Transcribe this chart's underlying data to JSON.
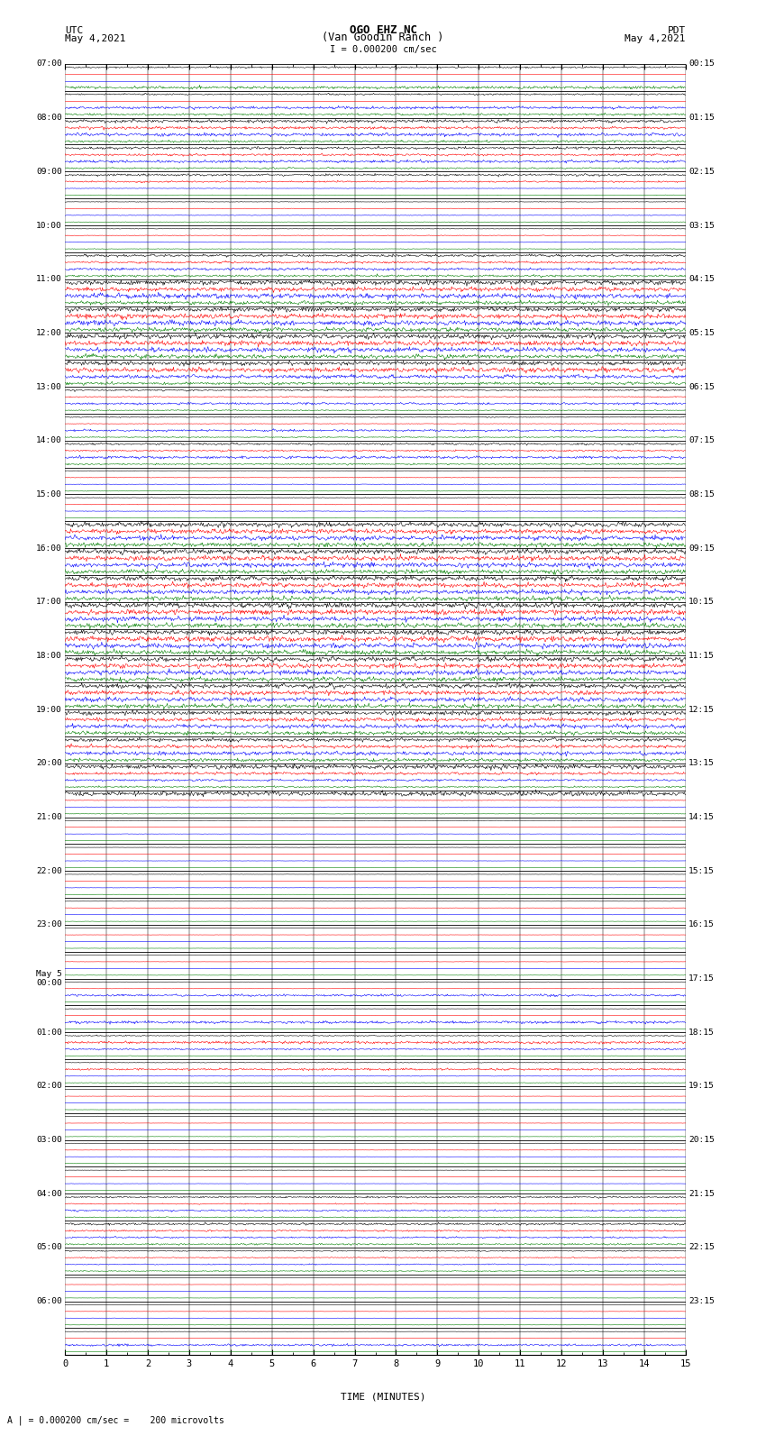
{
  "title_line1": "OGO EHZ NC",
  "title_line2": "(Van Goodin Ranch )",
  "scale_label": "I = 0.000200 cm/sec",
  "bottom_label": "A | = 0.000200 cm/sec =    200 microvolts",
  "utc_label": "UTC\nMay 4,2021",
  "pdt_label": "PDT\nMay 4,2021",
  "xlabel": "TIME (MINUTES)",
  "figure_width": 8.5,
  "figure_height": 16.13,
  "dpi": 100,
  "background_color": "#ffffff",
  "left_time_labels": [
    "07:00",
    "",
    "08:00",
    "",
    "09:00",
    "",
    "10:00",
    "",
    "11:00",
    "",
    "12:00",
    "",
    "13:00",
    "",
    "14:00",
    "",
    "15:00",
    "",
    "16:00",
    "",
    "17:00",
    "",
    "18:00",
    "",
    "19:00",
    "",
    "20:00",
    "",
    "21:00",
    "",
    "22:00",
    "",
    "23:00",
    "",
    "May 5\n00:00",
    "",
    "01:00",
    "",
    "02:00",
    "",
    "03:00",
    "",
    "04:00",
    "",
    "05:00",
    "",
    "06:00",
    ""
  ],
  "right_time_labels": [
    "00:15",
    "",
    "01:15",
    "",
    "02:15",
    "",
    "03:15",
    "",
    "04:15",
    "",
    "05:15",
    "",
    "06:15",
    "",
    "07:15",
    "",
    "08:15",
    "",
    "09:15",
    "",
    "10:15",
    "",
    "11:15",
    "",
    "12:15",
    "",
    "13:15",
    "",
    "14:15",
    "",
    "15:15",
    "",
    "16:15",
    "",
    "17:15",
    "",
    "18:15",
    "",
    "19:15",
    "",
    "20:15",
    "",
    "21:15",
    "",
    "22:15",
    "",
    "23:15",
    ""
  ],
  "row_activities": [
    {
      "noise": 0.04,
      "color_active": [
        0,
        0,
        0,
        0
      ],
      "row_amp": [
        0.3,
        0.0,
        0.0,
        0.5
      ]
    },
    {
      "noise": 0.04,
      "color_active": [
        0,
        0,
        1,
        1
      ],
      "row_amp": [
        0.3,
        0.0,
        0.5,
        0.4
      ]
    },
    {
      "noise": 0.06,
      "color_active": [
        1,
        1,
        1,
        1
      ],
      "row_amp": [
        0.6,
        0.5,
        0.6,
        0.4
      ]
    },
    {
      "noise": 0.05,
      "color_active": [
        1,
        1,
        1,
        1
      ],
      "row_amp": [
        0.5,
        0.4,
        0.5,
        0.3
      ]
    },
    {
      "noise": 0.04,
      "color_active": [
        1,
        1,
        0,
        0
      ],
      "row_amp": [
        0.4,
        0.3,
        0.1,
        0.1
      ]
    },
    {
      "noise": 0.03,
      "color_active": [
        0,
        0,
        0,
        0
      ],
      "row_amp": [
        0.1,
        0.1,
        0.1,
        0.1
      ]
    },
    {
      "noise": 0.03,
      "color_active": [
        0,
        0,
        0,
        0
      ],
      "row_amp": [
        0.1,
        0.1,
        0.1,
        0.1
      ]
    },
    {
      "noise": 0.05,
      "color_active": [
        1,
        1,
        1,
        1
      ],
      "row_amp": [
        0.5,
        0.4,
        0.5,
        0.4
      ]
    },
    {
      "noise": 0.5,
      "color_active": [
        1,
        1,
        1,
        1
      ],
      "row_amp": [
        0.9,
        0.8,
        0.9,
        0.7
      ]
    },
    {
      "noise": 0.5,
      "color_active": [
        1,
        1,
        1,
        1
      ],
      "row_amp": [
        0.9,
        0.9,
        0.95,
        0.8
      ]
    },
    {
      "noise": 0.5,
      "color_active": [
        1,
        1,
        1,
        1
      ],
      "row_amp": [
        0.95,
        0.9,
        0.9,
        0.8
      ]
    },
    {
      "noise": 0.4,
      "color_active": [
        1,
        1,
        1,
        1
      ],
      "row_amp": [
        0.8,
        0.9,
        0.7,
        0.5
      ]
    },
    {
      "noise": 0.05,
      "color_active": [
        1,
        1,
        1,
        1
      ],
      "row_amp": [
        0.3,
        0.2,
        0.4,
        0.2
      ]
    },
    {
      "noise": 0.04,
      "color_active": [
        1,
        1,
        1,
        1
      ],
      "row_amp": [
        0.2,
        0.1,
        0.4,
        0.2
      ]
    },
    {
      "noise": 0.06,
      "color_active": [
        1,
        1,
        1,
        1
      ],
      "row_amp": [
        0.4,
        0.3,
        0.5,
        0.3
      ]
    },
    {
      "noise": 0.03,
      "color_active": [
        0,
        0,
        0,
        0
      ],
      "row_amp": [
        0.1,
        0.1,
        0.1,
        0.1
      ]
    },
    {
      "noise": 0.03,
      "color_active": [
        0,
        0,
        0,
        0
      ],
      "row_amp": [
        0.1,
        0.1,
        0.1,
        0.1
      ]
    },
    {
      "noise": 0.6,
      "color_active": [
        1,
        1,
        1,
        1
      ],
      "row_amp": [
        0.9,
        0.85,
        0.85,
        0.8
      ]
    },
    {
      "noise": 0.6,
      "color_active": [
        1,
        1,
        1,
        1
      ],
      "row_amp": [
        0.95,
        0.9,
        0.9,
        0.85
      ]
    },
    {
      "noise": 0.6,
      "color_active": [
        1,
        1,
        1,
        1
      ],
      "row_amp": [
        0.9,
        0.9,
        0.9,
        0.85
      ]
    },
    {
      "noise": 0.7,
      "color_active": [
        1,
        1,
        1,
        1
      ],
      "row_amp": [
        0.95,
        0.95,
        0.95,
        0.9
      ]
    },
    {
      "noise": 0.7,
      "color_active": [
        1,
        1,
        1,
        1
      ],
      "row_amp": [
        0.95,
        0.95,
        0.95,
        0.9
      ]
    },
    {
      "noise": 0.7,
      "color_active": [
        1,
        1,
        1,
        1
      ],
      "row_amp": [
        0.9,
        0.9,
        0.9,
        0.85
      ]
    },
    {
      "noise": 0.6,
      "color_active": [
        1,
        1,
        1,
        1
      ],
      "row_amp": [
        0.85,
        0.8,
        0.85,
        0.8
      ]
    },
    {
      "noise": 0.5,
      "color_active": [
        1,
        1,
        1,
        1
      ],
      "row_amp": [
        0.8,
        0.7,
        0.8,
        0.7
      ]
    },
    {
      "noise": 0.4,
      "color_active": [
        1,
        1,
        1,
        1
      ],
      "row_amp": [
        0.7,
        0.6,
        0.7,
        0.6
      ]
    },
    {
      "noise": 0.35,
      "color_active": [
        1,
        1,
        1,
        1
      ],
      "row_amp": [
        0.9,
        0.5,
        0.4,
        0.3
      ]
    },
    {
      "noise": 0.1,
      "color_active": [
        1,
        0,
        0,
        0
      ],
      "row_amp": [
        0.9,
        0.1,
        0.1,
        0.1
      ]
    },
    {
      "noise": 0.02,
      "color_active": [
        0,
        0,
        0,
        0
      ],
      "row_amp": [
        0.05,
        0.05,
        0.05,
        0.05
      ]
    },
    {
      "noise": 0.02,
      "color_active": [
        0,
        0,
        0,
        0
      ],
      "row_amp": [
        0.05,
        0.05,
        0.05,
        0.05
      ]
    },
    {
      "noise": 0.02,
      "color_active": [
        0,
        0,
        0,
        0
      ],
      "row_amp": [
        0.05,
        0.05,
        0.05,
        0.05
      ]
    },
    {
      "noise": 0.02,
      "color_active": [
        0,
        0,
        0,
        0
      ],
      "row_amp": [
        0.05,
        0.05,
        0.05,
        0.05
      ]
    },
    {
      "noise": 0.02,
      "color_active": [
        0,
        0,
        0,
        0
      ],
      "row_amp": [
        0.05,
        0.05,
        0.05,
        0.05
      ]
    },
    {
      "noise": 0.02,
      "color_active": [
        0,
        0,
        0,
        0
      ],
      "row_amp": [
        0.05,
        0.05,
        0.05,
        0.05
      ]
    },
    {
      "noise": 0.02,
      "color_active": [
        0,
        0,
        1,
        0
      ],
      "row_amp": [
        0.05,
        0.05,
        0.4,
        0.05
      ]
    },
    {
      "noise": 0.02,
      "color_active": [
        0,
        0,
        1,
        0
      ],
      "row_amp": [
        0.05,
        0.05,
        0.5,
        0.05
      ]
    },
    {
      "noise": 0.05,
      "color_active": [
        1,
        1,
        1,
        0
      ],
      "row_amp": [
        0.2,
        0.5,
        0.3,
        0.1
      ]
    },
    {
      "noise": 0.04,
      "color_active": [
        0,
        1,
        0,
        0
      ],
      "row_amp": [
        0.1,
        0.4,
        0.1,
        0.1
      ]
    },
    {
      "noise": 0.02,
      "color_active": [
        0,
        0,
        0,
        0
      ],
      "row_amp": [
        0.05,
        0.05,
        0.05,
        0.05
      ]
    },
    {
      "noise": 0.02,
      "color_active": [
        0,
        0,
        0,
        0
      ],
      "row_amp": [
        0.05,
        0.05,
        0.05,
        0.05
      ]
    },
    {
      "noise": 0.02,
      "color_active": [
        0,
        0,
        0,
        0
      ],
      "row_amp": [
        0.05,
        0.05,
        0.05,
        0.05
      ]
    },
    {
      "noise": 0.02,
      "color_active": [
        0,
        0,
        0,
        0
      ],
      "row_amp": [
        0.05,
        0.05,
        0.05,
        0.05
      ]
    },
    {
      "noise": 0.04,
      "color_active": [
        1,
        1,
        1,
        1
      ],
      "row_amp": [
        0.3,
        0.2,
        0.3,
        0.2
      ]
    },
    {
      "noise": 0.05,
      "color_active": [
        1,
        1,
        1,
        1
      ],
      "row_amp": [
        0.4,
        0.3,
        0.3,
        0.3
      ]
    },
    {
      "noise": 0.03,
      "color_active": [
        1,
        1,
        1,
        1
      ],
      "row_amp": [
        0.2,
        0.2,
        0.2,
        0.2
      ]
    },
    {
      "noise": 0.02,
      "color_active": [
        0,
        0,
        0,
        0
      ],
      "row_amp": [
        0.05,
        0.05,
        0.05,
        0.05
      ]
    },
    {
      "noise": 0.02,
      "color_active": [
        0,
        0,
        0,
        0
      ],
      "row_amp": [
        0.05,
        0.05,
        0.05,
        0.05
      ]
    },
    {
      "noise": 0.02,
      "color_active": [
        0,
        0,
        1,
        0
      ],
      "row_amp": [
        0.05,
        0.05,
        0.4,
        0.05
      ]
    }
  ]
}
